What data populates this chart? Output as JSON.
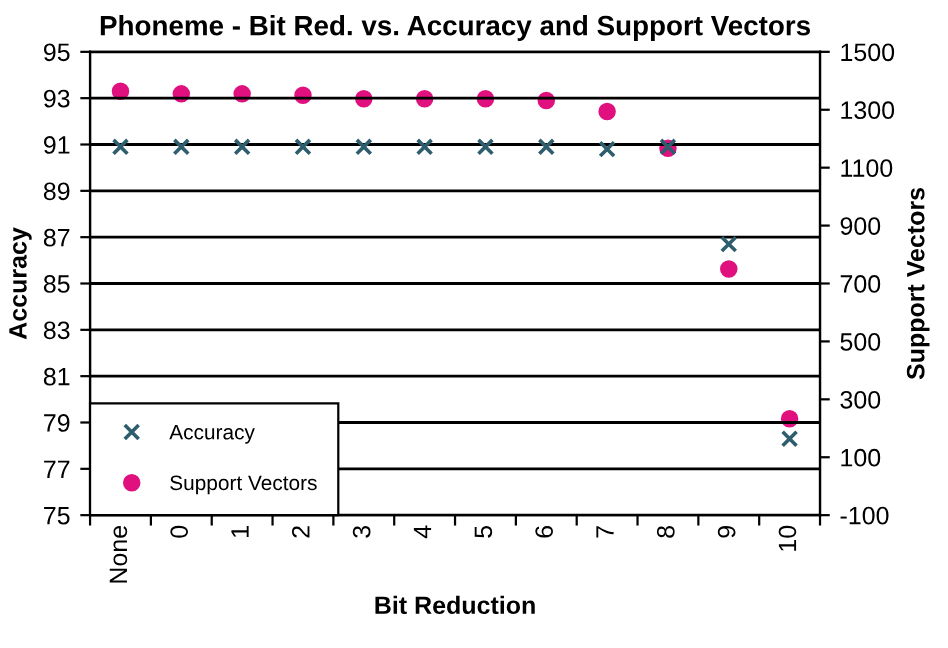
{
  "chart_data": {
    "type": "scatter",
    "title": "Phoneme - Bit Red. vs. Accuracy and Support Vectors",
    "xlabel": "Bit Reduction",
    "ylabel": "Accuracy",
    "y2label": "Support Vectors",
    "categories": [
      "None",
      "0",
      "1",
      "2",
      "3",
      "4",
      "5",
      "6",
      "7",
      "8",
      "9",
      "10"
    ],
    "series": [
      {
        "name": "Accuracy",
        "color": "#2e5d6e",
        "marker": "cross",
        "values": [
          90.9,
          90.9,
          90.9,
          90.9,
          90.9,
          90.9,
          90.9,
          90.9,
          90.8,
          90.9,
          86.7,
          78.3
        ]
      },
      {
        "name": "Support Vectors",
        "color": "#e0117f",
        "marker": "circle",
        "axis": "y2",
        "values": [
          1364,
          1355,
          1355,
          1350,
          1338,
          1338,
          1338,
          1332,
          1294,
          1167,
          750,
          233
        ]
      }
    ],
    "ylim": [
      75,
      95
    ],
    "yticks": [
      75,
      77,
      79,
      81,
      83,
      85,
      87,
      89,
      91,
      93,
      95
    ],
    "y2lim": [
      -100,
      1500
    ],
    "y2ticks": [
      -100,
      100,
      300,
      500,
      700,
      900,
      1100,
      1300,
      1500
    ],
    "grid": "y",
    "legend": "bottom left"
  }
}
